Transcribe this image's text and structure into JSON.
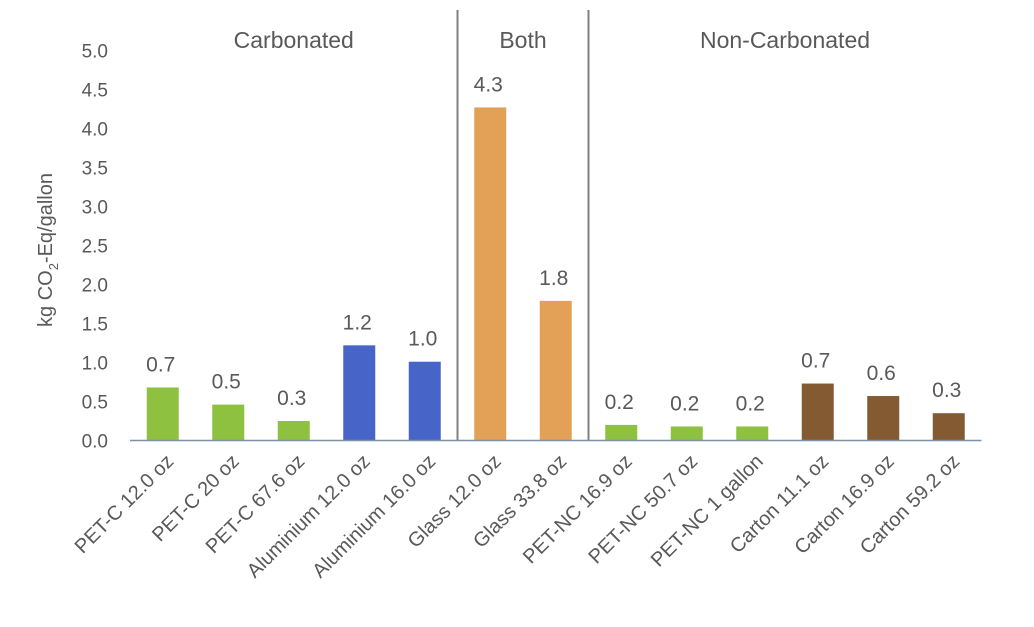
{
  "chart_data": {
    "type": "bar",
    "title": "",
    "xlabel": "",
    "ylabel": {
      "prefix": "kg CO",
      "subscript": "2",
      "suffix": "-Eq/gallon"
    },
    "ylim": [
      0,
      5
    ],
    "yticks": [
      "0.0",
      "0.5",
      "1.0",
      "1.5",
      "2.0",
      "2.5",
      "3.0",
      "3.5",
      "4.0",
      "4.5",
      "5.0"
    ],
    "grid": false,
    "legend": "none",
    "categories": [
      "PET-C 12.0 oz",
      "PET-C 20 oz",
      "PET-C 67.6 oz",
      "Aluminium 12.0 oz",
      "Aluminium 16.0 oz",
      "Glass 12.0 oz",
      "Glass 33.8 oz",
      "PET-NC 16.9 oz",
      "PET-NC 50.7 oz",
      "PET-NC 1 gallon",
      "Carton 11.1 oz",
      "Carton 16.9 oz",
      "Carton 59.2 oz"
    ],
    "values": [
      0.68,
      0.46,
      0.25,
      1.22,
      1.01,
      4.27,
      1.79,
      0.2,
      0.18,
      0.18,
      0.73,
      0.57,
      0.35
    ],
    "data_labels": [
      "0.7",
      "0.5",
      "0.3",
      "1.2",
      "1.0",
      "4.3",
      "1.8",
      "0.2",
      "0.2",
      "0.2",
      "0.7",
      "0.6",
      "0.3"
    ],
    "bar_colors": [
      "#8dc13f",
      "#8dc13f",
      "#8dc13f",
      "#4765c8",
      "#4765c8",
      "#e3a157",
      "#e3a157",
      "#8dc13f",
      "#8dc13f",
      "#8dc13f",
      "#845a33",
      "#845a33",
      "#845a33"
    ],
    "groups": [
      {
        "label": "Carbonated",
        "start": 0,
        "end": 4
      },
      {
        "label": "Both",
        "start": 5,
        "end": 6
      },
      {
        "label": "Non-Carbonated",
        "start": 7,
        "end": 12
      }
    ],
    "axis_color": "#7f8fa6",
    "divider_color": "#808080"
  }
}
